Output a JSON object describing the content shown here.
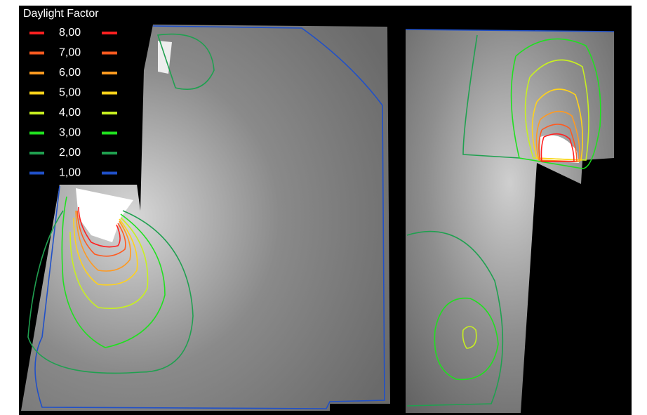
{
  "legend": {
    "title": "Daylight Factor",
    "items": [
      {
        "label": "8,00",
        "color": "#ff2020"
      },
      {
        "label": "7,00",
        "color": "#ff5a20"
      },
      {
        "label": "6,00",
        "color": "#ff9a20"
      },
      {
        "label": "5,00",
        "color": "#ffd21a"
      },
      {
        "label": "4,00",
        "color": "#c8f020"
      },
      {
        "label": "3,00",
        "color": "#20e020"
      },
      {
        "label": "2,00",
        "color": "#20a050"
      },
      {
        "label": "1,00",
        "color": "#2050c8"
      }
    ]
  }
}
